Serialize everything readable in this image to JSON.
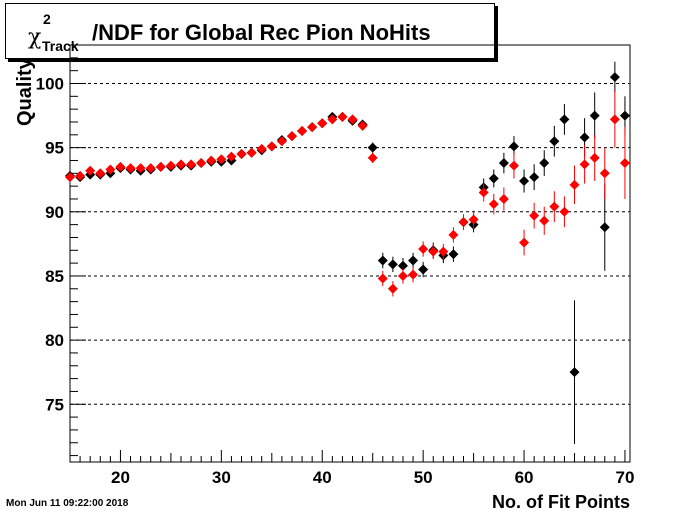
{
  "title": {
    "chi": "χ",
    "sup": "2",
    "sub": "Track",
    "main": "/NDF for Global Rec Pion NoHits"
  },
  "footer": {
    "timestamp": "Mon Jun 11 09:22:00 2018"
  },
  "chart_data": {
    "type": "scatter",
    "title": "χ2Track/NDF for Global Rec Pion NoHits",
    "xlabel": "No. of Fit Points",
    "ylabel": "Quality",
    "xlim": [
      15,
      70.5
    ],
    "ylim": [
      70.5,
      103
    ],
    "xticks": [
      "20",
      "30",
      "40",
      "50",
      "60",
      "70"
    ],
    "yticks": [
      "75",
      "80",
      "85",
      "90",
      "95",
      "100"
    ],
    "grid": "horizontal dashed",
    "series": [
      {
        "color": "#000000",
        "x": [
          15,
          16,
          17,
          18,
          19,
          20,
          21,
          22,
          23,
          24,
          25,
          26,
          27,
          28,
          29,
          30,
          31,
          32,
          33,
          34,
          35,
          36,
          37,
          38,
          39,
          40,
          41,
          42,
          43,
          44,
          45,
          46,
          47,
          48,
          49,
          50,
          51,
          52,
          53,
          54,
          55,
          56,
          57,
          58,
          59,
          60,
          61,
          62,
          63,
          64,
          65,
          66,
          67,
          68,
          69,
          70
        ],
        "y": [
          92.8,
          92.7,
          92.9,
          92.9,
          93.0,
          93.4,
          93.3,
          93.2,
          93.3,
          93.5,
          93.5,
          93.6,
          93.6,
          93.8,
          93.9,
          93.9,
          94.0,
          94.5,
          94.6,
          94.8,
          95.1,
          95.6,
          95.9,
          96.3,
          96.6,
          96.9,
          97.4,
          97.4,
          97.1,
          96.8,
          95.0,
          86.2,
          85.9,
          85.8,
          86.2,
          85.5,
          87.0,
          86.6,
          86.7,
          89.2,
          89.0,
          91.9,
          92.6,
          93.8,
          95.1,
          92.4,
          92.7,
          93.8,
          95.5,
          97.2,
          77.5,
          95.8,
          97.5,
          88.8,
          100.5,
          97.5
        ],
        "err": [
          0.3,
          0.3,
          0.3,
          0.3,
          0.3,
          0.3,
          0.3,
          0.3,
          0.3,
          0.3,
          0.3,
          0.3,
          0.3,
          0.3,
          0.3,
          0.3,
          0.3,
          0.3,
          0.3,
          0.3,
          0.3,
          0.3,
          0.3,
          0.3,
          0.3,
          0.3,
          0.3,
          0.3,
          0.3,
          0.3,
          0.4,
          0.6,
          0.6,
          0.6,
          0.6,
          0.6,
          0.6,
          0.6,
          0.6,
          0.6,
          0.6,
          0.7,
          0.7,
          0.8,
          0.8,
          0.9,
          1.0,
          1.0,
          1.2,
          1.2,
          5.6,
          1.5,
          1.8,
          3.4,
          1.2,
          1.5
        ]
      },
      {
        "color": "#ff0000",
        "x": [
          15,
          16,
          17,
          18,
          19,
          20,
          21,
          22,
          23,
          24,
          25,
          26,
          27,
          28,
          29,
          30,
          31,
          32,
          33,
          34,
          35,
          36,
          37,
          38,
          39,
          40,
          41,
          42,
          43,
          44,
          45,
          46,
          47,
          48,
          49,
          50,
          51,
          52,
          53,
          54,
          55,
          56,
          57,
          58,
          59,
          60,
          61,
          62,
          63,
          64,
          65,
          66,
          67,
          68,
          69,
          70
        ],
        "y": [
          92.7,
          92.8,
          93.2,
          93.0,
          93.3,
          93.5,
          93.4,
          93.4,
          93.4,
          93.5,
          93.6,
          93.7,
          93.7,
          93.8,
          94.0,
          94.1,
          94.3,
          94.5,
          94.6,
          94.9,
          95.1,
          95.5,
          95.9,
          96.3,
          96.6,
          96.9,
          97.2,
          97.4,
          97.2,
          96.7,
          94.2,
          84.8,
          84.0,
          85.0,
          85.1,
          87.1,
          86.9,
          86.9,
          88.2,
          89.2,
          89.4,
          91.5,
          90.6,
          91.0,
          93.6,
          87.6,
          89.7,
          89.3,
          90.4,
          90.0,
          92.1,
          93.7,
          94.2,
          93.0,
          97.2,
          93.8
        ],
        "err": [
          0.3,
          0.3,
          0.3,
          0.3,
          0.3,
          0.3,
          0.3,
          0.3,
          0.3,
          0.3,
          0.3,
          0.3,
          0.3,
          0.3,
          0.3,
          0.3,
          0.3,
          0.3,
          0.3,
          0.3,
          0.3,
          0.3,
          0.3,
          0.3,
          0.3,
          0.3,
          0.3,
          0.3,
          0.3,
          0.3,
          0.4,
          0.6,
          0.6,
          0.6,
          0.6,
          0.6,
          0.6,
          0.6,
          0.6,
          0.6,
          0.7,
          0.7,
          0.8,
          0.9,
          1.0,
          1.0,
          1.0,
          1.1,
          1.2,
          1.2,
          1.5,
          1.5,
          1.8,
          2.0,
          2.2,
          2.8
        ]
      }
    ]
  }
}
